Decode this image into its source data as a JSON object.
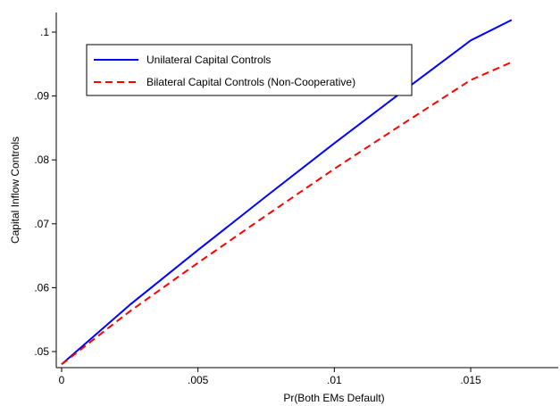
{
  "chart_data": {
    "type": "line",
    "title": "",
    "xlabel": "Pr(Both EMs Default)",
    "ylabel": "Capital Inflow Controls",
    "xlim": [
      0,
      0.0165
    ],
    "ylim": [
      0.0475,
      0.1035
    ],
    "x_ticks": [
      0,
      0.005,
      0.01,
      0.015
    ],
    "x_tick_labels": [
      "0",
      ".005",
      ".01",
      ".015"
    ],
    "y_ticks": [
      0.05,
      0.06,
      0.07,
      0.08,
      0.09,
      0.1
    ],
    "y_tick_labels": [
      ".05",
      ".06",
      ".07",
      ".08",
      ".09",
      ".1"
    ],
    "grid": false,
    "legend_position": "top-left",
    "series": [
      {
        "name": "Unilateral Capital Controls",
        "color": "#0000ff",
        "dash": "solid",
        "x": [
          0,
          0.0025,
          0.005,
          0.0075,
          0.01,
          0.0125,
          0.015,
          0.0165
        ],
        "y": [
          0.048,
          0.0573,
          0.0659,
          0.0743,
          0.0826,
          0.0907,
          0.0987,
          0.1019
        ]
      },
      {
        "name": "Bilateral Capital Controls (Non-Cooperative)",
        "color": "#ff0000",
        "dash": "dashed",
        "x": [
          0,
          0.0025,
          0.005,
          0.0075,
          0.01,
          0.0125,
          0.015,
          0.0165
        ],
        "y": [
          0.048,
          0.0563,
          0.0639,
          0.0713,
          0.0786,
          0.0856,
          0.0925,
          0.0953
        ]
      }
    ]
  }
}
